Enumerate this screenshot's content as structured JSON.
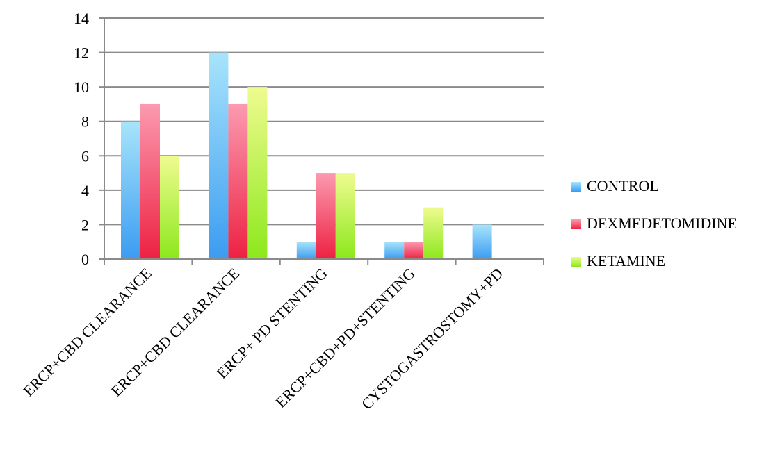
{
  "chart_data": {
    "type": "bar",
    "title": "",
    "xlabel": "",
    "ylabel": "",
    "ylim": [
      0,
      14
    ],
    "yticks": [
      0,
      2,
      4,
      6,
      8,
      10,
      12,
      14
    ],
    "grid": true,
    "legend_position": "right",
    "categories": [
      "ERCP+CBD CLEARANCE",
      "ERCP+CBD CLEARANCE",
      "ERCP+ PD STENTING",
      "ERCP+CBD+PD+STENTING",
      "CYSTOGASTROSTOMY+PD"
    ],
    "series": [
      {
        "name": "CONTROL",
        "values": [
          8,
          12,
          1,
          1,
          2
        ],
        "color_top": "#a8e4fb",
        "color_bottom": "#3b9cf1"
      },
      {
        "name": "DEXMEDETOMIDINE",
        "values": [
          9,
          9,
          5,
          1,
          0
        ],
        "color_top": "#fb9ab0",
        "color_bottom": "#ee2142"
      },
      {
        "name": "KETAMINE",
        "values": [
          6,
          10,
          5,
          3,
          0
        ],
        "color_top": "#effb90",
        "color_bottom": "#8ce81c"
      }
    ]
  }
}
